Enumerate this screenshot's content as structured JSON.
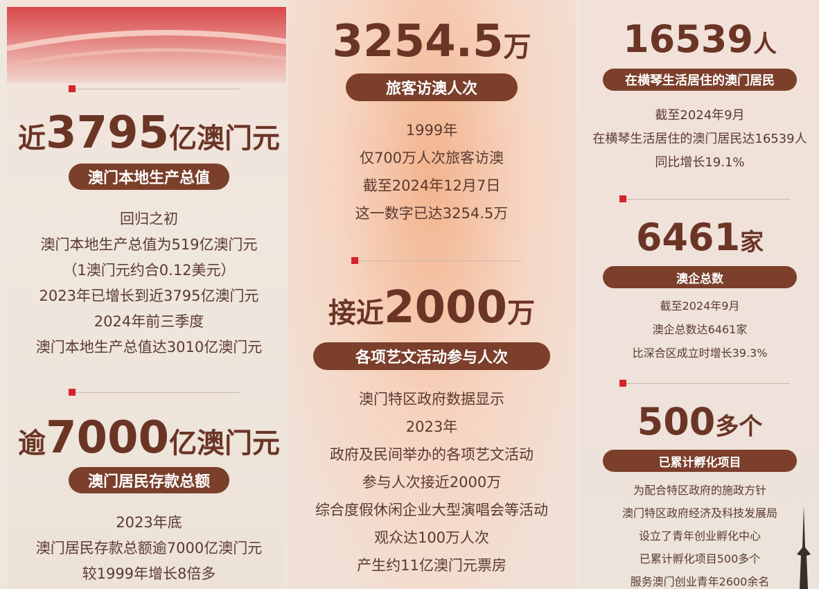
{
  "columns": [
    {
      "blocks": [
        {
          "prefix": "近",
          "number": "3795",
          "suffix": "亿澳门元",
          "label": "澳门本地生产总值",
          "lines": [
            "回归之初",
            "澳门本地生产总值为519亿澳门元",
            "（1澳门元约合0.12美元）",
            "2023年已增长到近3795亿澳门元",
            "2024年前三季度",
            "澳门本地生产总值达3010亿澳门元"
          ]
        },
        {
          "prefix": "逾",
          "number": "7000",
          "suffix": "亿澳门元",
          "label": "澳门居民存款总额",
          "lines": [
            "2023年底",
            "澳门居民存款总额逾7000亿澳门元",
            "较1999年增长8倍多"
          ]
        }
      ]
    },
    {
      "blocks": [
        {
          "number": "3254.5",
          "suffix": "万",
          "label": "旅客访澳人次",
          "lines": [
            "1999年",
            "仅700万人次旅客访澳",
            "截至2024年12月7日",
            "这一数字已达3254.5万"
          ]
        },
        {
          "prefix": "接近",
          "number": "2000",
          "suffix": "万",
          "label": "各项艺文活动参与人次",
          "lines": [
            "澳门特区政府数据显示",
            "2023年",
            "政府及民间举办的各项艺文活动",
            "参与人次接近2000万",
            "综合度假休闲企业大型演唱会等活动",
            "观众达100万人次",
            "产生约11亿澳门元票房"
          ]
        }
      ]
    },
    {
      "blocks": [
        {
          "number": "16539",
          "suffix": "人",
          "label": "在横琴生活居住的澳门居民",
          "lines": [
            "截至2024年9月",
            "在横琴生活居住的澳门居民达16539人",
            "同比增长19.1%"
          ]
        },
        {
          "number": "6461",
          "suffix": "家",
          "label": "澳企总数",
          "lines": [
            "截至2024年9月",
            "澳企总数达6461家",
            "比深合区成立时增长39.3%"
          ]
        },
        {
          "number": "500",
          "suffix": "多个",
          "label": "已累计孵化项目",
          "lines": [
            "为配合特区政府的施政方针",
            "澳门特区政府经济及科技发展局",
            "设立了青年创业孵化中心",
            "已累计孵化项目500多个",
            "服务澳门创业青年2600余名"
          ]
        }
      ]
    }
  ]
}
